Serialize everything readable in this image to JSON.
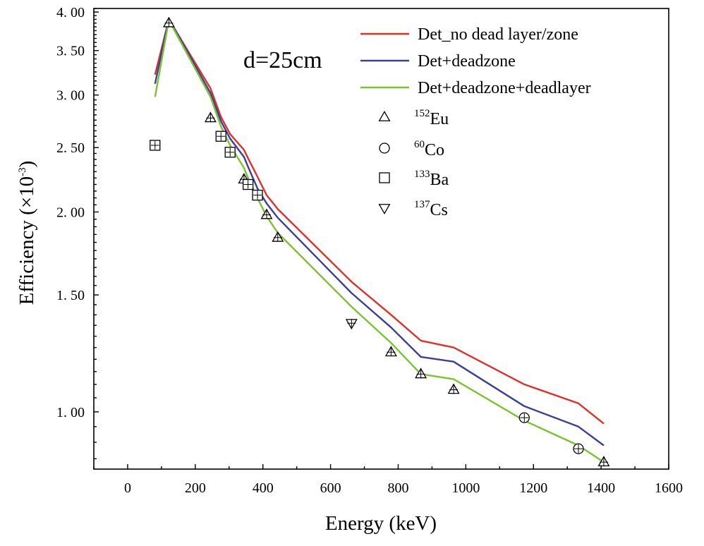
{
  "chart_data": {
    "type": "line",
    "xlabel": "Energy (keV)",
    "ylabel": "Efficiency (×10",
    "ylabel_sup": "-3",
    "ylabel_close": ")",
    "xlim": [
      -100,
      1600
    ],
    "x_ticks": [
      0,
      200,
      400,
      600,
      800,
      1000,
      1200,
      1400,
      1600
    ],
    "x_tick_labels": [
      "0",
      "200",
      "400",
      "600",
      "800",
      "1000",
      "1200",
      "1400",
      "1600"
    ],
    "ylim": [
      0.82,
      4.05
    ],
    "y_scale": "log",
    "y_ticks": [
      1.0,
      1.5,
      2.0,
      2.5,
      3.0,
      3.5,
      4.0
    ],
    "y_tick_labels": [
      "1. 00",
      "1. 50",
      "2. 00",
      "2. 50",
      "3. 00",
      "3. 50",
      "4. 00"
    ],
    "annotation": "d=25cm",
    "series": [
      {
        "name": "Det_no dead layer/zone",
        "color": "#e0302a",
        "x": [
          81,
          122,
          245,
          276,
          303,
          344,
          356,
          384,
          411,
          444,
          662,
          779,
          867,
          964,
          1173,
          1333,
          1408
        ],
        "y": [
          3.22,
          3.9,
          3.07,
          2.78,
          2.62,
          2.48,
          2.41,
          2.26,
          2.12,
          2.02,
          1.57,
          1.4,
          1.28,
          1.25,
          1.1,
          1.03,
          0.96
        ]
      },
      {
        "name": "Det+deadzone",
        "color": "#3c3e9c",
        "x": [
          81,
          122,
          245,
          276,
          303,
          344,
          356,
          384,
          411,
          444,
          662,
          779,
          867,
          964,
          1173,
          1333,
          1408
        ],
        "y": [
          3.12,
          3.91,
          3.02,
          2.74,
          2.58,
          2.42,
          2.34,
          2.17,
          2.06,
          1.96,
          1.51,
          1.34,
          1.21,
          1.19,
          1.02,
          0.95,
          0.89
        ]
      },
      {
        "name": "Det+deadzone+deadlayer",
        "color": "#7cc42d",
        "x": [
          81,
          122,
          245,
          276,
          303,
          344,
          356,
          384,
          411,
          444,
          662,
          779,
          867,
          964,
          1173,
          1333,
          1408
        ],
        "y": [
          2.98,
          3.89,
          2.98,
          2.69,
          2.52,
          2.33,
          2.25,
          2.1,
          1.97,
          1.86,
          1.44,
          1.27,
          1.14,
          1.12,
          0.97,
          0.89,
          0.84
        ]
      }
    ],
    "measured": [
      {
        "name": "Eu",
        "isotope_mass": "152",
        "marker": "triangle-up",
        "x": [
          122,
          245,
          344,
          411,
          444,
          779,
          867,
          964,
          1408
        ],
        "y": [
          3.85,
          2.77,
          2.24,
          1.98,
          1.83,
          1.23,
          1.14,
          1.08,
          0.84
        ]
      },
      {
        "name": "Co",
        "isotope_mass": "60",
        "marker": "circle",
        "x": [
          1173,
          1333
        ],
        "y": [
          0.98,
          0.88
        ]
      },
      {
        "name": "Ba",
        "isotope_mass": "133",
        "marker": "square",
        "x": [
          81,
          276,
          303,
          356,
          384
        ],
        "y": [
          2.52,
          2.6,
          2.46,
          2.2,
          2.12
        ]
      },
      {
        "name": "Cs",
        "isotope_mass": "137",
        "marker": "triangle-down",
        "x": [
          662
        ],
        "y": [
          1.36
        ]
      }
    ]
  }
}
